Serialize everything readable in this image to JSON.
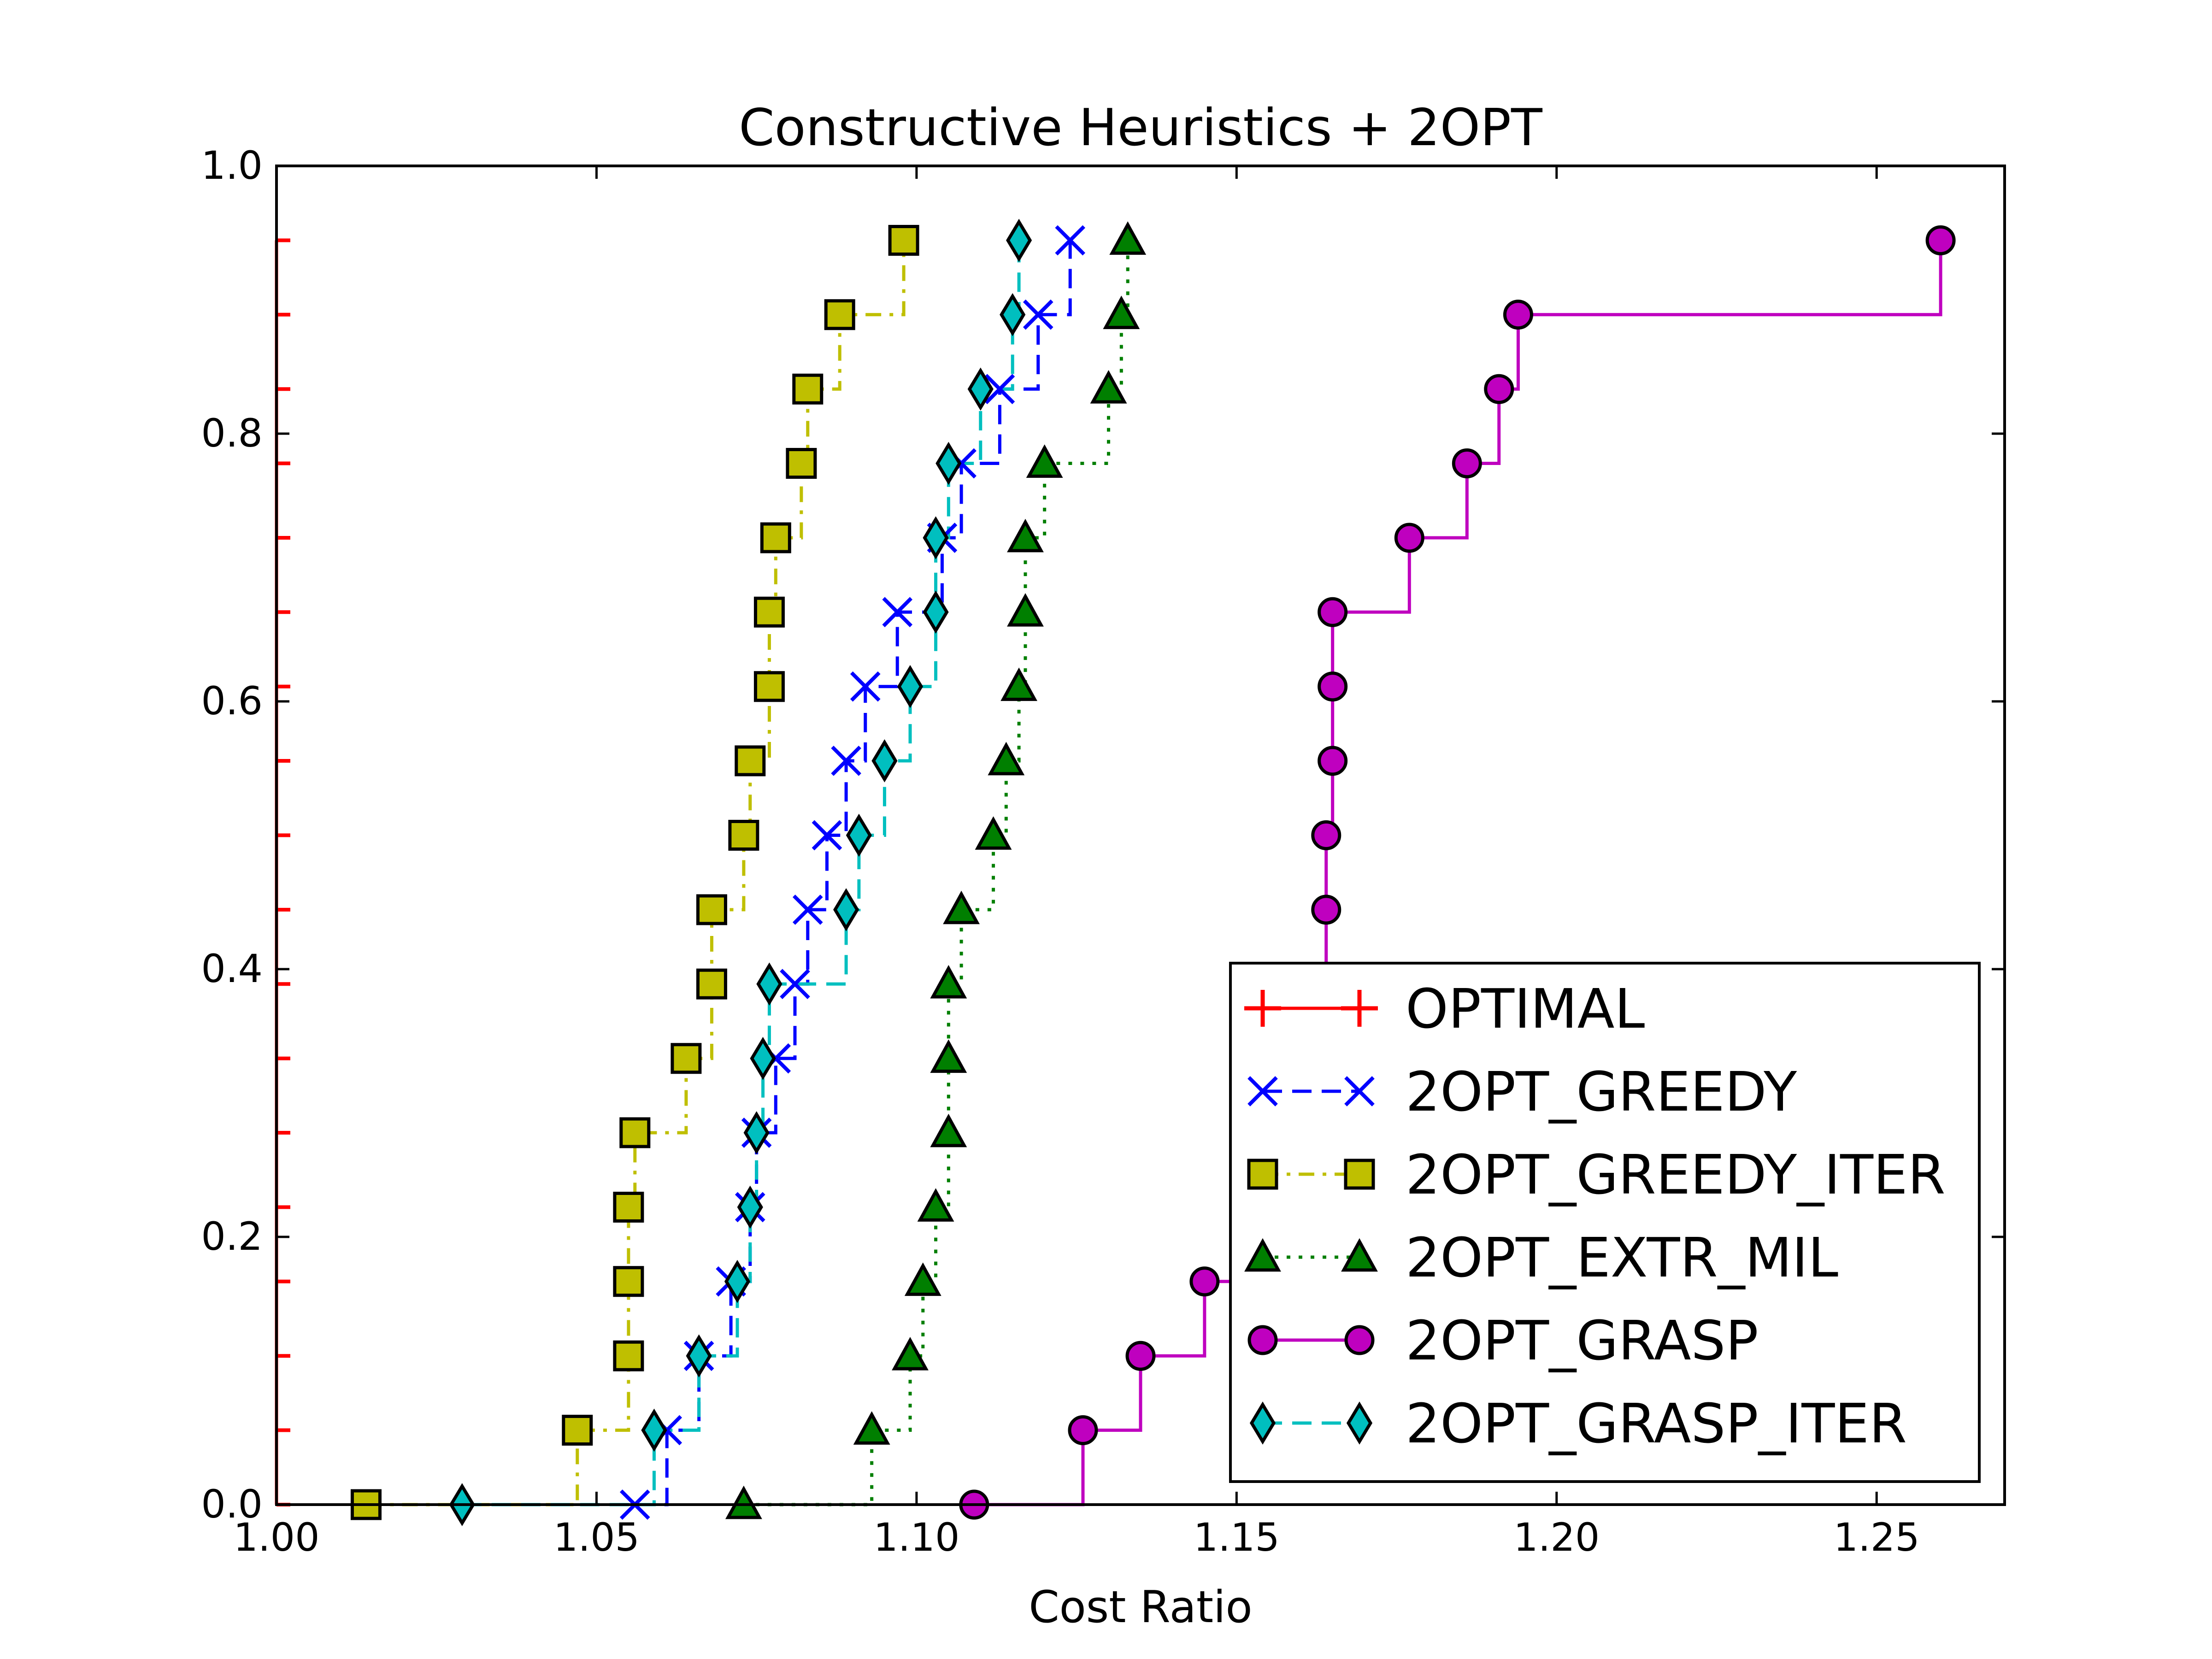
{
  "chart_data": {
    "type": "line",
    "title": "Constructive Heuristics + 2OPT",
    "xlabel": "Cost Ratio",
    "ylabel": "",
    "xlim": [
      1.0,
      1.27
    ],
    "ylim": [
      0.0,
      1.0
    ],
    "xticks": [
      "1.00",
      "1.05",
      "1.10",
      "1.15",
      "1.20",
      "1.25"
    ],
    "yticks": [
      "0.0",
      "0.2",
      "0.4",
      "0.6",
      "0.8",
      "1.0"
    ],
    "grid": false,
    "legend_position": "lower right",
    "drawstyle": "steps-post",
    "series": [
      {
        "name": "OPTIMAL",
        "color": "#ff0000",
        "marker": "plus",
        "linestyle": "solid",
        "x": [
          1.0,
          1.0,
          1.0,
          1.0,
          1.0,
          1.0,
          1.0,
          1.0,
          1.0,
          1.0,
          1.0,
          1.0,
          1.0,
          1.0,
          1.0,
          1.0,
          1.0,
          1.0
        ],
        "y": [
          0.0,
          0.0556,
          0.1111,
          0.1667,
          0.2222,
          0.2778,
          0.3333,
          0.3889,
          0.4444,
          0.5,
          0.5556,
          0.6111,
          0.6667,
          0.7222,
          0.7778,
          0.8333,
          0.8889,
          0.9444
        ]
      },
      {
        "name": "2OPT_GREEDY",
        "color": "#0000ff",
        "marker": "x",
        "linestyle": "dashed",
        "x": [
          1.056,
          1.061,
          1.066,
          1.071,
          1.074,
          1.075,
          1.078,
          1.081,
          1.083,
          1.086,
          1.089,
          1.092,
          1.097,
          1.104,
          1.107,
          1.113,
          1.119,
          1.124
        ],
        "y": [
          0.0,
          0.0556,
          0.1111,
          0.1667,
          0.2222,
          0.2778,
          0.3333,
          0.3889,
          0.4444,
          0.5,
          0.5556,
          0.6111,
          0.6667,
          0.7222,
          0.7778,
          0.8333,
          0.8889,
          0.9444
        ]
      },
      {
        "name": "2OPT_GREEDY_ITER",
        "color": "#bfbf00",
        "marker": "square",
        "linestyle": "dashdot",
        "x": [
          1.014,
          1.047,
          1.055,
          1.055,
          1.055,
          1.056,
          1.064,
          1.068,
          1.068,
          1.073,
          1.074,
          1.077,
          1.077,
          1.078,
          1.082,
          1.083,
          1.088,
          1.098
        ],
        "y": [
          0.0,
          0.0556,
          0.1111,
          0.1667,
          0.2222,
          0.2778,
          0.3333,
          0.3889,
          0.4444,
          0.5,
          0.5556,
          0.6111,
          0.6667,
          0.7222,
          0.7778,
          0.8333,
          0.8889,
          0.9444
        ]
      },
      {
        "name": "2OPT_EXTR_MIL",
        "color": "#007f00",
        "marker": "triangle",
        "linestyle": "dotted",
        "x": [
          1.073,
          1.093,
          1.099,
          1.101,
          1.103,
          1.105,
          1.105,
          1.105,
          1.107,
          1.112,
          1.114,
          1.116,
          1.117,
          1.117,
          1.12,
          1.13,
          1.132,
          1.133
        ],
        "y": [
          0.0,
          0.0556,
          0.1111,
          0.1667,
          0.2222,
          0.2778,
          0.3333,
          0.3889,
          0.4444,
          0.5,
          0.5556,
          0.6111,
          0.6667,
          0.7222,
          0.7778,
          0.8333,
          0.8889,
          0.9444
        ]
      },
      {
        "name": "2OPT_GRASP",
        "color": "#bf00bf",
        "marker": "circle",
        "linestyle": "solid",
        "x": [
          1.109,
          1.126,
          1.135,
          1.145,
          1.152,
          1.157,
          1.16,
          1.162,
          1.164,
          1.164,
          1.165,
          1.165,
          1.165,
          1.177,
          1.186,
          1.191,
          1.194,
          1.26
        ],
        "y": [
          0.0,
          0.0556,
          0.1111,
          0.1667,
          0.2222,
          0.2778,
          0.3333,
          0.3889,
          0.4444,
          0.5,
          0.5556,
          0.6111,
          0.6667,
          0.7222,
          0.7778,
          0.8333,
          0.8889,
          0.9444
        ]
      },
      {
        "name": "2OPT_GRASP_ITER",
        "color": "#00bfbf",
        "marker": "diamond",
        "linestyle": "dashed",
        "x": [
          1.029,
          1.059,
          1.066,
          1.072,
          1.074,
          1.075,
          1.076,
          1.077,
          1.089,
          1.091,
          1.095,
          1.099,
          1.103,
          1.103,
          1.105,
          1.11,
          1.115,
          1.116
        ],
        "y": [
          0.0,
          0.0556,
          0.1111,
          0.1667,
          0.2222,
          0.2778,
          0.3333,
          0.3889,
          0.4444,
          0.5,
          0.5556,
          0.6111,
          0.6667,
          0.7222,
          0.7778,
          0.8333,
          0.8889,
          0.9444
        ]
      }
    ]
  }
}
